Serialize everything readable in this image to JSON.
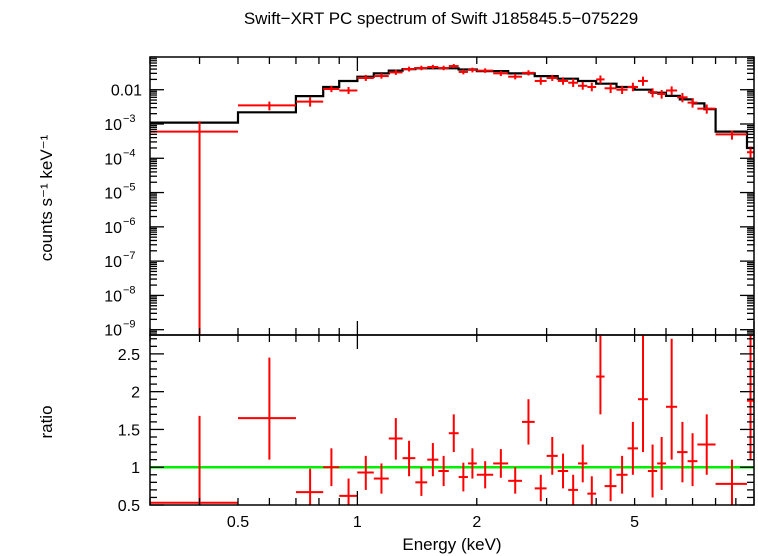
{
  "chart_data": [
    {
      "type": "scatter",
      "title": "Swift−XRT PC spectrum of Swift J185845.5−075229",
      "ylabel": "counts s⁻¹ keV⁻¹",
      "yscale": "log",
      "ylim": [
        7e-10,
        0.09
      ],
      "xscale": "log",
      "xlim": [
        0.3,
        10
      ],
      "yticks": [
        {
          "value": 0.01,
          "label": "0.01"
        },
        {
          "value": 0.001,
          "label": "10",
          "exp": "−3"
        },
        {
          "value": 0.0001,
          "label": "10",
          "exp": "−4"
        },
        {
          "value": 1e-05,
          "label": "10",
          "exp": "−5"
        },
        {
          "value": 1e-06,
          "label": "10",
          "exp": "−6"
        },
        {
          "value": 1e-07,
          "label": "10",
          "exp": "−7"
        },
        {
          "value": 1e-08,
          "label": "10",
          "exp": "−8"
        },
        {
          "value": 1e-09,
          "label": "10",
          "exp": "−9"
        }
      ],
      "series": [
        {
          "color": "#ff0000",
          "style": "errorbars",
          "points": [
            {
              "x": 0.4,
              "xlo": 0.3,
              "xhi": 0.5,
              "y": 0.0006,
              "ylo": 7e-10,
              "yhi": 0.0012
            },
            {
              "x": 0.6,
              "xlo": 0.5,
              "xhi": 0.7,
              "y": 0.0035,
              "ylo": 0.0025,
              "yhi": 0.0045
            },
            {
              "x": 0.76,
              "xlo": 0.7,
              "xhi": 0.82,
              "y": 0.0045,
              "ylo": 0.0032,
              "yhi": 0.006
            },
            {
              "x": 0.86,
              "xlo": 0.82,
              "xhi": 0.9,
              "y": 0.0105,
              "ylo": 0.0085,
              "yhi": 0.013
            },
            {
              "x": 0.95,
              "xlo": 0.9,
              "xhi": 1.0,
              "y": 0.0095,
              "ylo": 0.0075,
              "yhi": 0.012
            },
            {
              "x": 1.05,
              "xlo": 1.0,
              "xhi": 1.1,
              "y": 0.022,
              "ylo": 0.018,
              "yhi": 0.027
            },
            {
              "x": 1.15,
              "xlo": 1.1,
              "xhi": 1.2,
              "y": 0.025,
              "ylo": 0.021,
              "yhi": 0.03
            },
            {
              "x": 1.25,
              "xlo": 1.2,
              "xhi": 1.3,
              "y": 0.032,
              "ylo": 0.027,
              "yhi": 0.038
            },
            {
              "x": 1.35,
              "xlo": 1.3,
              "xhi": 1.4,
              "y": 0.04,
              "ylo": 0.034,
              "yhi": 0.047
            },
            {
              "x": 1.45,
              "xlo": 1.4,
              "xhi": 1.5,
              "y": 0.043,
              "ylo": 0.037,
              "yhi": 0.05
            },
            {
              "x": 1.55,
              "xlo": 1.5,
              "xhi": 1.6,
              "y": 0.046,
              "ylo": 0.04,
              "yhi": 0.053
            },
            {
              "x": 1.65,
              "xlo": 1.6,
              "xhi": 1.7,
              "y": 0.043,
              "ylo": 0.037,
              "yhi": 0.05
            },
            {
              "x": 1.75,
              "xlo": 1.7,
              "xhi": 1.8,
              "y": 0.049,
              "ylo": 0.043,
              "yhi": 0.056
            },
            {
              "x": 1.85,
              "xlo": 1.8,
              "xhi": 1.9,
              "y": 0.033,
              "ylo": 0.028,
              "yhi": 0.039
            },
            {
              "x": 1.95,
              "xlo": 1.9,
              "xhi": 2.0,
              "y": 0.038,
              "ylo": 0.032,
              "yhi": 0.044
            },
            {
              "x": 2.1,
              "xlo": 2.0,
              "xhi": 2.2,
              "y": 0.036,
              "ylo": 0.031,
              "yhi": 0.042
            },
            {
              "x": 2.3,
              "xlo": 2.2,
              "xhi": 2.4,
              "y": 0.03,
              "ylo": 0.025,
              "yhi": 0.035
            },
            {
              "x": 2.5,
              "xlo": 2.4,
              "xhi": 2.6,
              "y": 0.024,
              "ylo": 0.02,
              "yhi": 0.029
            },
            {
              "x": 2.7,
              "xlo": 2.6,
              "xhi": 2.8,
              "y": 0.031,
              "ylo": 0.026,
              "yhi": 0.037
            },
            {
              "x": 2.9,
              "xlo": 2.8,
              "xhi": 3.0,
              "y": 0.018,
              "ylo": 0.014,
              "yhi": 0.023
            },
            {
              "x": 3.1,
              "xlo": 3.0,
              "xhi": 3.2,
              "y": 0.022,
              "ylo": 0.018,
              "yhi": 0.027
            },
            {
              "x": 3.3,
              "xlo": 3.2,
              "xhi": 3.4,
              "y": 0.018,
              "ylo": 0.014,
              "yhi": 0.023
            },
            {
              "x": 3.5,
              "xlo": 3.4,
              "xhi": 3.6,
              "y": 0.016,
              "ylo": 0.012,
              "yhi": 0.021
            },
            {
              "x": 3.7,
              "xlo": 3.6,
              "xhi": 3.8,
              "y": 0.013,
              "ylo": 0.01,
              "yhi": 0.017
            },
            {
              "x": 3.9,
              "xlo": 3.8,
              "xhi": 4.0,
              "y": 0.012,
              "ylo": 0.009,
              "yhi": 0.016
            },
            {
              "x": 4.1,
              "xlo": 4.0,
              "xhi": 4.2,
              "y": 0.02,
              "ylo": 0.015,
              "yhi": 0.026
            },
            {
              "x": 4.35,
              "xlo": 4.2,
              "xhi": 4.5,
              "y": 0.011,
              "ylo": 0.008,
              "yhi": 0.015
            },
            {
              "x": 4.65,
              "xlo": 4.5,
              "xhi": 4.8,
              "y": 0.01,
              "ylo": 0.0075,
              "yhi": 0.013
            },
            {
              "x": 4.95,
              "xlo": 4.8,
              "xhi": 5.1,
              "y": 0.012,
              "ylo": 0.009,
              "yhi": 0.016
            },
            {
              "x": 5.25,
              "xlo": 5.1,
              "xhi": 5.4,
              "y": 0.018,
              "ylo": 0.013,
              "yhi": 0.024
            },
            {
              "x": 5.55,
              "xlo": 5.4,
              "xhi": 5.7,
              "y": 0.0085,
              "ylo": 0.006,
              "yhi": 0.011
            },
            {
              "x": 5.85,
              "xlo": 5.7,
              "xhi": 6.0,
              "y": 0.0075,
              "ylo": 0.0055,
              "yhi": 0.0098
            },
            {
              "x": 6.2,
              "xlo": 6.0,
              "xhi": 6.4,
              "y": 0.0095,
              "ylo": 0.007,
              "yhi": 0.0125
            },
            {
              "x": 6.6,
              "xlo": 6.4,
              "xhi": 6.8,
              "y": 0.006,
              "ylo": 0.0043,
              "yhi": 0.008
            },
            {
              "x": 7.0,
              "xlo": 6.8,
              "xhi": 7.2,
              "y": 0.0042,
              "ylo": 0.003,
              "yhi": 0.0056
            },
            {
              "x": 7.6,
              "xlo": 7.2,
              "xhi": 8.0,
              "y": 0.0028,
              "ylo": 0.002,
              "yhi": 0.0037
            },
            {
              "x": 8.8,
              "xlo": 8.0,
              "xhi": 9.6,
              "y": 0.0005,
              "ylo": 0.00035,
              "yhi": 0.00065
            },
            {
              "x": 9.8,
              "xlo": 9.6,
              "xhi": 10.0,
              "y": 0.00015,
              "ylo": 0.0001,
              "yhi": 0.00022
            }
          ]
        },
        {
          "color": "#000000",
          "style": "step",
          "bins": [
            {
              "xlo": 0.3,
              "xhi": 0.5,
              "y": 0.0011
            },
            {
              "xlo": 0.5,
              "xhi": 0.7,
              "y": 0.0022
            },
            {
              "xlo": 0.7,
              "xhi": 0.82,
              "y": 0.0065
            },
            {
              "xlo": 0.82,
              "xhi": 0.9,
              "y": 0.012
            },
            {
              "xlo": 0.9,
              "xhi": 1.0,
              "y": 0.018
            },
            {
              "xlo": 1.0,
              "xhi": 1.1,
              "y": 0.024
            },
            {
              "xlo": 1.1,
              "xhi": 1.2,
              "y": 0.03
            },
            {
              "xlo": 1.2,
              "xhi": 1.3,
              "y": 0.036
            },
            {
              "xlo": 1.3,
              "xhi": 1.4,
              "y": 0.04
            },
            {
              "xlo": 1.4,
              "xhi": 1.6,
              "y": 0.042
            },
            {
              "xlo": 1.6,
              "xhi": 1.8,
              "y": 0.042
            },
            {
              "xlo": 1.8,
              "xhi": 2.0,
              "y": 0.039
            },
            {
              "xlo": 2.0,
              "xhi": 2.4,
              "y": 0.035
            },
            {
              "xlo": 2.4,
              "xhi": 2.8,
              "y": 0.03
            },
            {
              "xlo": 2.8,
              "xhi": 3.2,
              "y": 0.025
            },
            {
              "xlo": 3.2,
              "xhi": 3.6,
              "y": 0.021
            },
            {
              "xlo": 3.6,
              "xhi": 4.0,
              "y": 0.018
            },
            {
              "xlo": 4.0,
              "xhi": 4.5,
              "y": 0.015
            },
            {
              "xlo": 4.5,
              "xhi": 5.0,
              "y": 0.012
            },
            {
              "xlo": 5.0,
              "xhi": 5.5,
              "y": 0.01
            },
            {
              "xlo": 5.5,
              "xhi": 6.0,
              "y": 0.0082
            },
            {
              "xlo": 6.0,
              "xhi": 6.5,
              "y": 0.0066
            },
            {
              "xlo": 6.5,
              "xhi": 7.0,
              "y": 0.0052
            },
            {
              "xlo": 7.0,
              "xhi": 7.5,
              "y": 0.004
            },
            {
              "xlo": 7.5,
              "xhi": 8.0,
              "y": 0.0027
            },
            {
              "xlo": 8.0,
              "xhi": 9.6,
              "y": 0.0006
            },
            {
              "xlo": 9.6,
              "xhi": 10.0,
              "y": 0.0002
            }
          ]
        }
      ]
    },
    {
      "type": "scatter",
      "ylabel": "ratio",
      "xlabel": "Energy (keV)",
      "yscale": "linear",
      "ylim": [
        0.5,
        2.75
      ],
      "xscale": "log",
      "xlim": [
        0.3,
        10
      ],
      "yticks": [
        {
          "value": 0.5,
          "label": "0.5"
        },
        {
          "value": 1,
          "label": "1"
        },
        {
          "value": 1.5,
          "label": "1.5"
        },
        {
          "value": 2,
          "label": "2"
        },
        {
          "value": 2.5,
          "label": "2.5"
        }
      ],
      "xticks": [
        {
          "value": 0.5,
          "label": "0.5"
        },
        {
          "value": 1,
          "label": "1"
        },
        {
          "value": 2,
          "label": "2"
        },
        {
          "value": 5,
          "label": "5"
        }
      ],
      "reference_line": {
        "y": 1,
        "color": "#00ee00"
      },
      "series": [
        {
          "color": "#ff0000",
          "style": "errorbars",
          "points": [
            {
              "x": 0.4,
              "xlo": 0.3,
              "xhi": 0.5,
              "y": 0.53,
              "ylo": 0.5,
              "yhi": 1.68
            },
            {
              "x": 0.6,
              "xlo": 0.5,
              "xhi": 0.7,
              "y": 1.65,
              "ylo": 1.1,
              "yhi": 2.45
            },
            {
              "x": 0.76,
              "xlo": 0.7,
              "xhi": 0.82,
              "y": 0.67,
              "ylo": 0.5,
              "yhi": 0.98
            },
            {
              "x": 0.86,
              "xlo": 0.82,
              "xhi": 0.9,
              "y": 1.0,
              "ylo": 0.75,
              "yhi": 1.25
            },
            {
              "x": 0.95,
              "xlo": 0.9,
              "xhi": 1.0,
              "y": 0.62,
              "ylo": 0.5,
              "yhi": 0.85
            },
            {
              "x": 1.05,
              "xlo": 1.0,
              "xhi": 1.1,
              "y": 0.93,
              "ylo": 0.7,
              "yhi": 1.15
            },
            {
              "x": 1.15,
              "xlo": 1.1,
              "xhi": 1.2,
              "y": 0.85,
              "ylo": 0.65,
              "yhi": 1.05
            },
            {
              "x": 1.25,
              "xlo": 1.2,
              "xhi": 1.3,
              "y": 1.38,
              "ylo": 1.1,
              "yhi": 1.65
            },
            {
              "x": 1.35,
              "xlo": 1.3,
              "xhi": 1.4,
              "y": 1.12,
              "ylo": 0.88,
              "yhi": 1.35
            },
            {
              "x": 1.45,
              "xlo": 1.4,
              "xhi": 1.5,
              "y": 0.8,
              "ylo": 0.62,
              "yhi": 1.0
            },
            {
              "x": 1.55,
              "xlo": 1.5,
              "xhi": 1.6,
              "y": 1.1,
              "ylo": 0.88,
              "yhi": 1.32
            },
            {
              "x": 1.65,
              "xlo": 1.6,
              "xhi": 1.7,
              "y": 0.95,
              "ylo": 0.75,
              "yhi": 1.15
            },
            {
              "x": 1.75,
              "xlo": 1.7,
              "xhi": 1.8,
              "y": 1.45,
              "ylo": 1.2,
              "yhi": 1.7
            },
            {
              "x": 1.85,
              "xlo": 1.8,
              "xhi": 1.9,
              "y": 0.87,
              "ylo": 0.68,
              "yhi": 1.06
            },
            {
              "x": 1.95,
              "xlo": 1.9,
              "xhi": 2.0,
              "y": 1.05,
              "ylo": 0.85,
              "yhi": 1.25
            },
            {
              "x": 2.1,
              "xlo": 2.0,
              "xhi": 2.2,
              "y": 0.9,
              "ylo": 0.72,
              "yhi": 1.08
            },
            {
              "x": 2.3,
              "xlo": 2.2,
              "xhi": 2.4,
              "y": 1.05,
              "ylo": 0.86,
              "yhi": 1.24
            },
            {
              "x": 2.5,
              "xlo": 2.4,
              "xhi": 2.6,
              "y": 0.82,
              "ylo": 0.65,
              "yhi": 1.0
            },
            {
              "x": 2.7,
              "xlo": 2.6,
              "xhi": 2.8,
              "y": 1.6,
              "ylo": 1.3,
              "yhi": 1.9
            },
            {
              "x": 2.9,
              "xlo": 2.8,
              "xhi": 3.0,
              "y": 0.72,
              "ylo": 0.55,
              "yhi": 0.9
            },
            {
              "x": 3.1,
              "xlo": 3.0,
              "xhi": 3.2,
              "y": 1.15,
              "ylo": 0.9,
              "yhi": 1.4
            },
            {
              "x": 3.3,
              "xlo": 3.2,
              "xhi": 3.4,
              "y": 0.95,
              "ylo": 0.72,
              "yhi": 1.18
            },
            {
              "x": 3.5,
              "xlo": 3.4,
              "xhi": 3.6,
              "y": 0.7,
              "ylo": 0.5,
              "yhi": 0.9
            },
            {
              "x": 3.7,
              "xlo": 3.6,
              "xhi": 3.8,
              "y": 1.05,
              "ylo": 0.8,
              "yhi": 1.3
            },
            {
              "x": 3.9,
              "xlo": 3.8,
              "xhi": 4.0,
              "y": 0.65,
              "ylo": 0.5,
              "yhi": 0.88
            },
            {
              "x": 4.1,
              "xlo": 4.0,
              "xhi": 4.2,
              "y": 2.2,
              "ylo": 1.7,
              "yhi": 2.75
            },
            {
              "x": 4.35,
              "xlo": 4.2,
              "xhi": 4.5,
              "y": 0.75,
              "ylo": 0.55,
              "yhi": 0.98
            },
            {
              "x": 4.65,
              "xlo": 4.5,
              "xhi": 4.8,
              "y": 0.9,
              "ylo": 0.65,
              "yhi": 1.15
            },
            {
              "x": 4.95,
              "xlo": 4.8,
              "xhi": 5.1,
              "y": 1.25,
              "ylo": 0.9,
              "yhi": 1.6
            },
            {
              "x": 5.25,
              "xlo": 5.1,
              "xhi": 5.4,
              "y": 1.9,
              "ylo": 1.2,
              "yhi": 2.75
            },
            {
              "x": 5.55,
              "xlo": 5.4,
              "xhi": 5.7,
              "y": 0.95,
              "ylo": 0.6,
              "yhi": 1.3
            },
            {
              "x": 5.85,
              "xlo": 5.7,
              "xhi": 6.0,
              "y": 1.05,
              "ylo": 0.7,
              "yhi": 1.4
            },
            {
              "x": 6.2,
              "xlo": 6.0,
              "xhi": 6.4,
              "y": 1.8,
              "ylo": 1.1,
              "yhi": 2.7
            },
            {
              "x": 6.6,
              "xlo": 6.4,
              "xhi": 6.8,
              "y": 1.2,
              "ylo": 0.8,
              "yhi": 1.6
            },
            {
              "x": 7.0,
              "xlo": 6.8,
              "xhi": 7.2,
              "y": 1.08,
              "ylo": 0.75,
              "yhi": 1.45
            },
            {
              "x": 7.6,
              "xlo": 7.2,
              "xhi": 8.0,
              "y": 1.3,
              "ylo": 0.9,
              "yhi": 1.7
            },
            {
              "x": 8.8,
              "xlo": 8.0,
              "xhi": 9.6,
              "y": 0.78,
              "ylo": 0.5,
              "yhi": 1.1
            },
            {
              "x": 9.8,
              "xlo": 9.6,
              "xhi": 10.0,
              "y": 1.88,
              "ylo": 1.1,
              "yhi": 2.75
            }
          ]
        }
      ]
    }
  ]
}
